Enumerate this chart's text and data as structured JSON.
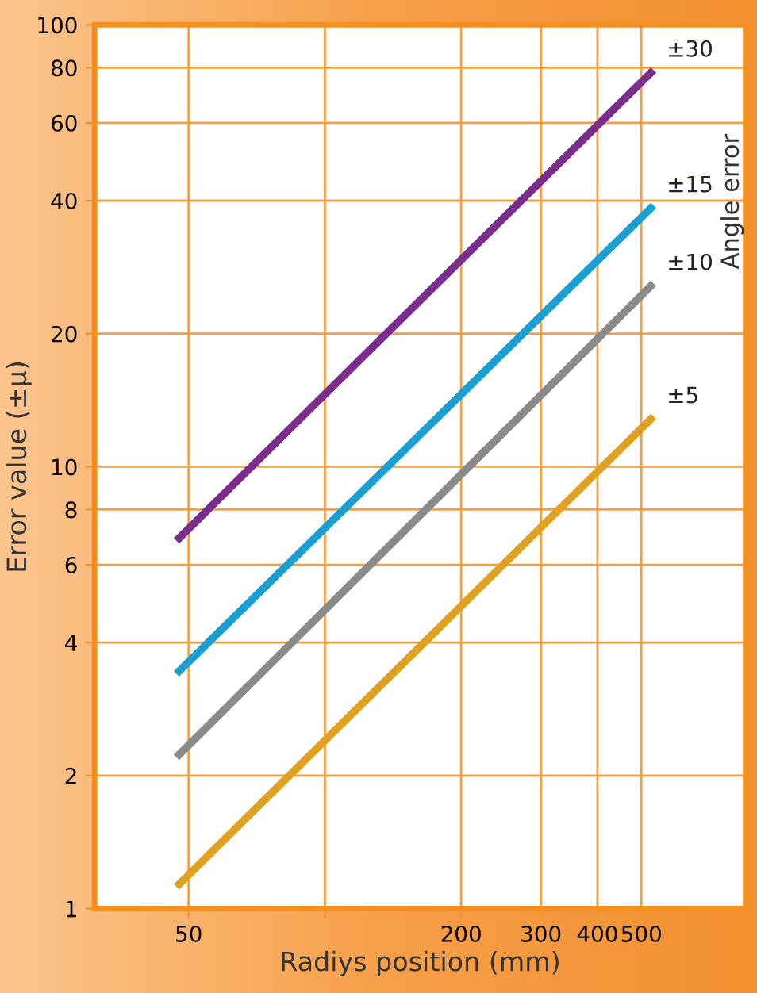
{
  "chart_data": {
    "type": "line",
    "xlabel": "Radiys position (mm)",
    "ylabel": "Error value (±μ)",
    "log": "xy",
    "xlim": [
      31,
      850
    ],
    "ylim": [
      1,
      100
    ],
    "xticks": [
      50,
      {
        "value": 100,
        "label": null
      },
      200,
      300,
      400,
      500
    ],
    "yticks": [
      1,
      2,
      4,
      6,
      8,
      10,
      20,
      40,
      60,
      80,
      100
    ],
    "grid": true,
    "x": [
      47,
      532
    ],
    "marker": "none",
    "line_style": "solid",
    "annotations": [
      "Angle error"
    ],
    "series": [
      {
        "name": "±30",
        "color": "#7b2d8e",
        "values": [
          6.8,
          79
        ]
      },
      {
        "name": "±15",
        "color": "#1a9fd4",
        "values": [
          3.4,
          39
        ]
      },
      {
        "name": "±10",
        "color": "#8a8a8a",
        "values": [
          2.2,
          26
        ]
      },
      {
        "name": "±5",
        "color": "#e0a020",
        "values": [
          1.12,
          13
        ]
      }
    ]
  }
}
